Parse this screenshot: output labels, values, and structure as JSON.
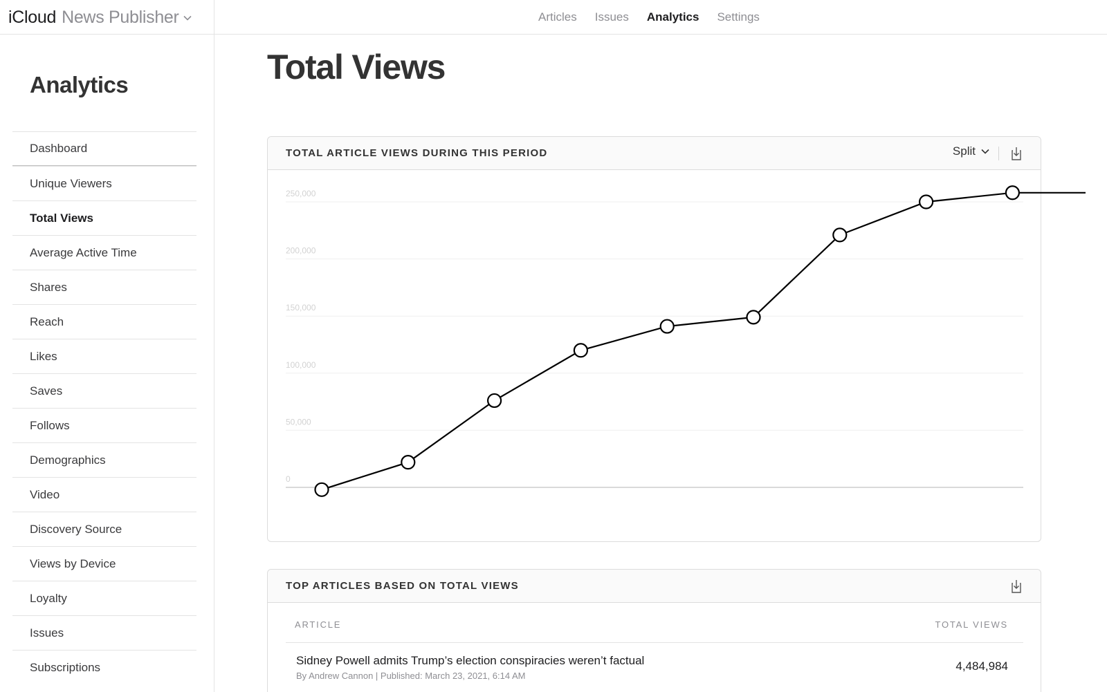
{
  "brand": {
    "icloud": "iCloud",
    "product": "News Publisher"
  },
  "topnav": [
    {
      "label": "Articles",
      "active": false
    },
    {
      "label": "Issues",
      "active": false
    },
    {
      "label": "Analytics",
      "active": true
    },
    {
      "label": "Settings",
      "active": false
    }
  ],
  "sidebar": {
    "title": "Analytics",
    "items": [
      {
        "label": "Dashboard"
      },
      {
        "label": "Unique Viewers"
      },
      {
        "label": "Total Views",
        "active": true
      },
      {
        "label": "Average Active Time"
      },
      {
        "label": "Shares"
      },
      {
        "label": "Reach"
      },
      {
        "label": "Likes"
      },
      {
        "label": "Saves"
      },
      {
        "label": "Follows"
      },
      {
        "label": "Demographics"
      },
      {
        "label": "Video"
      },
      {
        "label": "Discovery Source"
      },
      {
        "label": "Views by Device"
      },
      {
        "label": "Loyalty"
      },
      {
        "label": "Issues"
      },
      {
        "label": "Subscriptions"
      }
    ]
  },
  "main": {
    "title": "Total Views"
  },
  "chart_card": {
    "title": "TOTAL ARTICLE VIEWS DURING THIS PERIOD",
    "split_label": "Split",
    "export_icon": "export-icon"
  },
  "chart_data": {
    "type": "line",
    "ylim": [
      0,
      250000
    ],
    "yticks": [
      "250,000",
      "200,000",
      "150,000",
      "100,000",
      "50,000",
      "0"
    ],
    "ytick_values": [
      250000,
      200000,
      150000,
      100000,
      50000,
      0
    ],
    "series": [
      {
        "values": [
          -2000,
          22000,
          76000,
          120000,
          141000,
          149000,
          221000,
          250000,
          258000,
          258000
        ]
      }
    ],
    "grid": true,
    "line_color": "#000000"
  },
  "table_card": {
    "title": "TOP ARTICLES BASED ON TOTAL VIEWS",
    "col_article": "ARTICLE",
    "col_views": "TOTAL VIEWS",
    "rows": [
      {
        "title": "Sidney Powell admits Trump’s election conspiracies weren’t factual",
        "meta": "By Andrew Cannon | Published: March 23, 2021, 6:14 AM",
        "views": "4,484,984"
      }
    ]
  }
}
